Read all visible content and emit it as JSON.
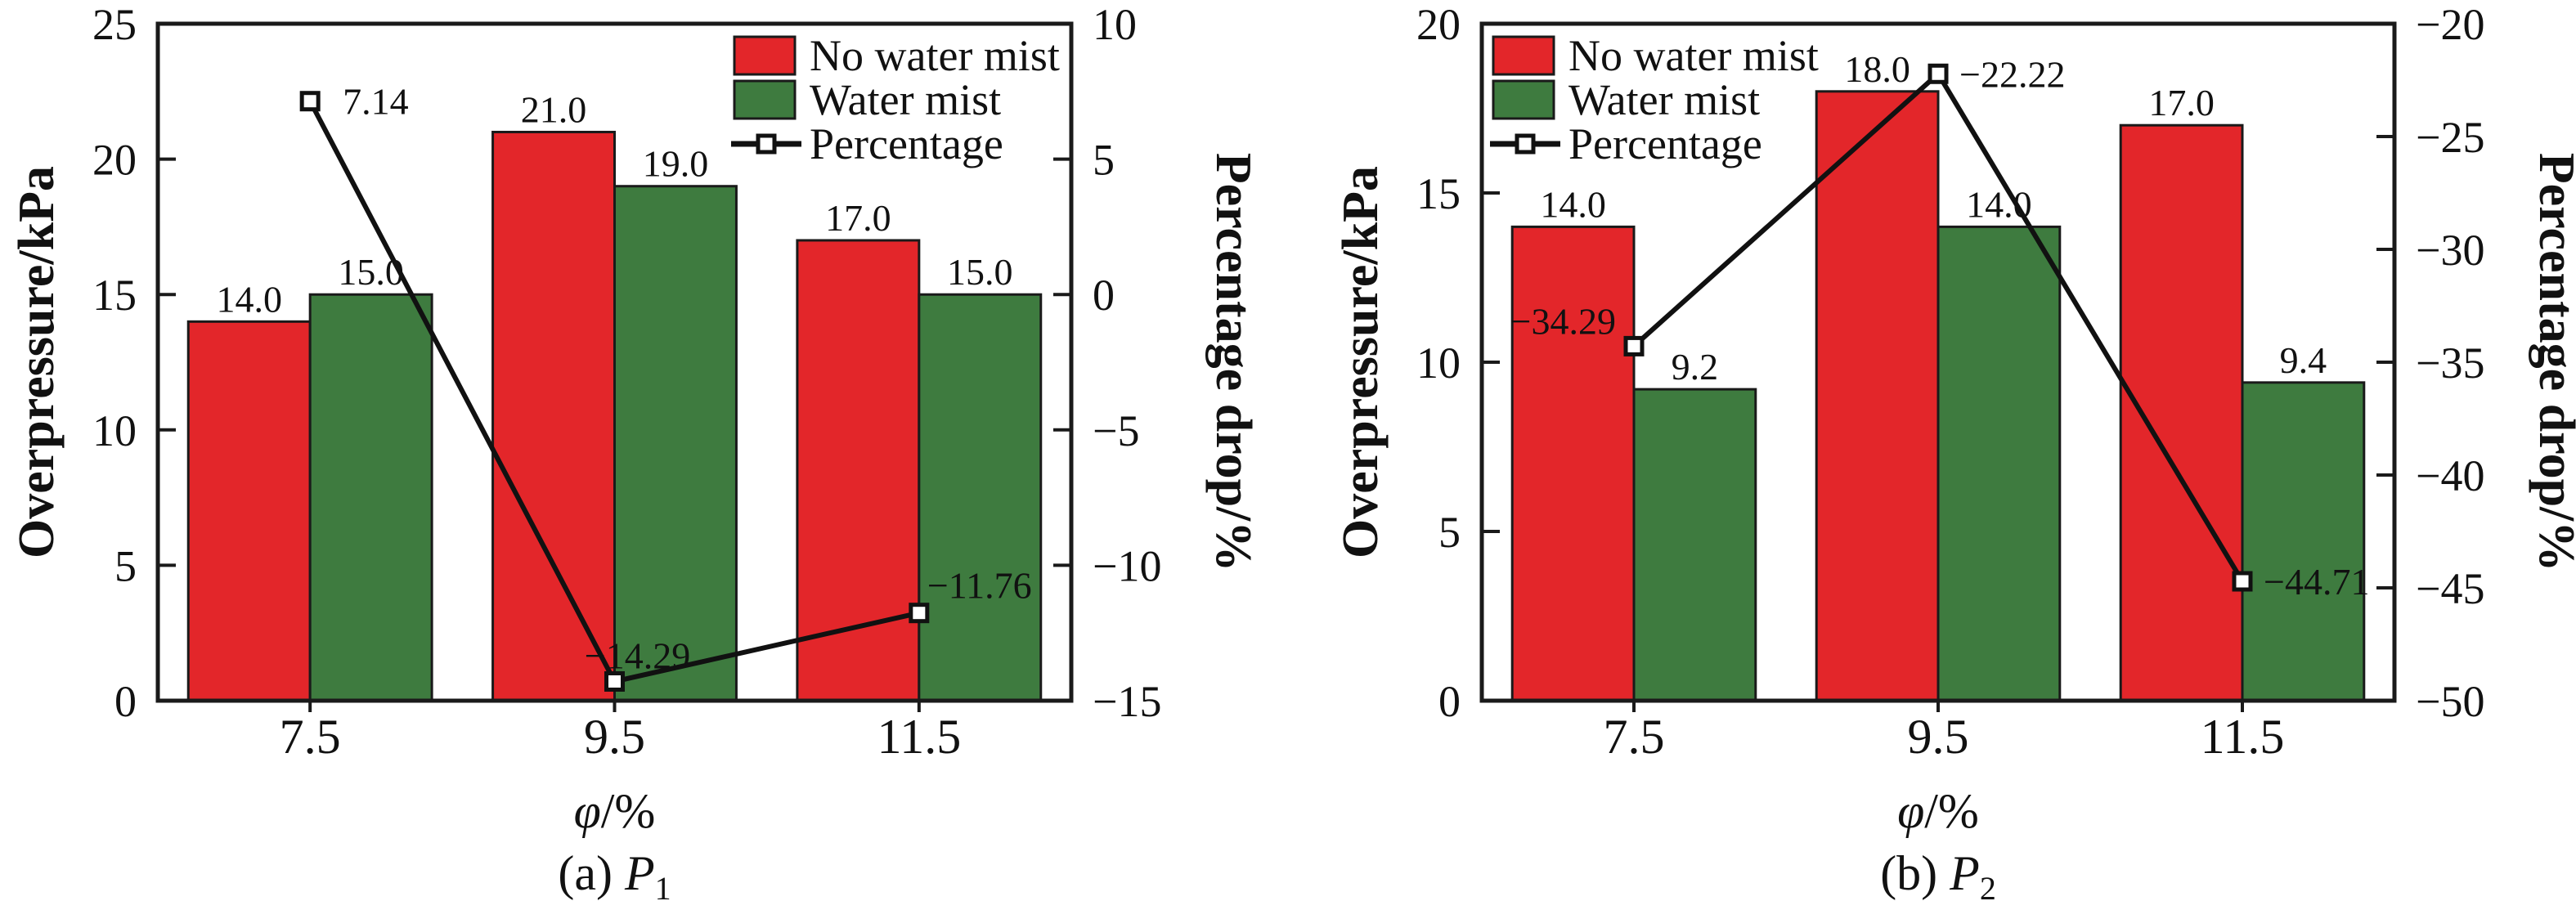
{
  "figure": {
    "background": "#ffffff",
    "bar_edge_color": "#1a1a1a",
    "line_color": "#111111",
    "marker_fill": "#ffffff"
  },
  "chart_data": [
    {
      "panel": "a",
      "type": "bar+line",
      "caption": {
        "prefix": "(a) ",
        "symbol": "P",
        "subscript": "1"
      },
      "xlabel": {
        "symbol": "φ",
        "rest": "/%"
      },
      "categories": [
        "7.5",
        "9.5",
        "11.5"
      ],
      "left_axis": {
        "label": "Overpressure/kPa",
        "min": 0,
        "max": 25,
        "ticks": [
          {
            "v": 0,
            "label": "0"
          },
          {
            "v": 5,
            "label": "5"
          },
          {
            "v": 10,
            "label": "10"
          },
          {
            "v": 15,
            "label": "15"
          },
          {
            "v": 20,
            "label": "20"
          },
          {
            "v": 25,
            "label": "25"
          }
        ]
      },
      "right_axis": {
        "label": "Percentage drop/%",
        "min": -15,
        "max": 10,
        "ticks": [
          {
            "v": 10,
            "label": "10"
          },
          {
            "v": 5,
            "label": "5"
          },
          {
            "v": 0,
            "label": "0"
          },
          {
            "v": -5,
            "label": "−5"
          },
          {
            "v": -10,
            "label": "−10"
          },
          {
            "v": -15,
            "label": "−15"
          }
        ]
      },
      "series": [
        {
          "name": "No water mist",
          "color": "#e3262a",
          "values": [
            14.0,
            21.0,
            17.0
          ],
          "labels": [
            "14.0",
            "21.0",
            "17.0"
          ]
        },
        {
          "name": "Water mist",
          "color": "#3e7b3f",
          "values": [
            15.0,
            19.0,
            15.0
          ],
          "labels": [
            "15.0",
            "19.0",
            "15.0"
          ]
        }
      ],
      "line": {
        "name": "Percentage",
        "points": [
          {
            "x": "7.5",
            "v": 7.14,
            "label": "7.14",
            "pos": "right"
          },
          {
            "x": "9.5",
            "v": -14.29,
            "label": "−14.29",
            "pos": "above"
          },
          {
            "x": "11.5",
            "v": -11.76,
            "label": "−11.76",
            "pos": "above-right"
          }
        ]
      },
      "legend": {
        "position": "top-right",
        "items": [
          "No water mist",
          "Water mist",
          "Percentage"
        ]
      }
    },
    {
      "panel": "b",
      "type": "bar+line",
      "caption": {
        "prefix": "(b) ",
        "symbol": "P",
        "subscript": "2"
      },
      "xlabel": {
        "symbol": "φ",
        "rest": "/%"
      },
      "categories": [
        "7.5",
        "9.5",
        "11.5"
      ],
      "left_axis": {
        "label": "Overpressure/kPa",
        "min": 0,
        "max": 20,
        "ticks": [
          {
            "v": 0,
            "label": "0"
          },
          {
            "v": 5,
            "label": "5"
          },
          {
            "v": 10,
            "label": "10"
          },
          {
            "v": 15,
            "label": "15"
          },
          {
            "v": 20,
            "label": "20"
          }
        ]
      },
      "right_axis": {
        "label": "Percentage drop/%",
        "min": -50,
        "max": -20,
        "ticks": [
          {
            "v": -20,
            "label": "−20"
          },
          {
            "v": -25,
            "label": "−25"
          },
          {
            "v": -30,
            "label": "−30"
          },
          {
            "v": -35,
            "label": "−35"
          },
          {
            "v": -40,
            "label": "−40"
          },
          {
            "v": -45,
            "label": "−45"
          },
          {
            "v": -50,
            "label": "−50"
          }
        ]
      },
      "series": [
        {
          "name": "No water mist",
          "color": "#e3262a",
          "values": [
            14.0,
            18.0,
            17.0
          ],
          "labels": [
            "14.0",
            "18.0",
            "17.0"
          ]
        },
        {
          "name": "Water mist",
          "color": "#3e7b3f",
          "values": [
            9.2,
            14.0,
            9.4
          ],
          "labels": [
            "9.2",
            "14.0",
            "9.4"
          ]
        }
      ],
      "line": {
        "name": "Percentage",
        "points": [
          {
            "x": "7.5",
            "v": -34.29,
            "label": "−34.29",
            "pos": "left"
          },
          {
            "x": "9.5",
            "v": -22.22,
            "label": "−22.22",
            "pos": "right-mid"
          },
          {
            "x": "11.5",
            "v": -44.71,
            "label": "−44.71",
            "pos": "right-mid"
          }
        ]
      },
      "legend": {
        "position": "top-left",
        "items": [
          "No water mist",
          "Water mist",
          "Percentage"
        ]
      }
    }
  ]
}
